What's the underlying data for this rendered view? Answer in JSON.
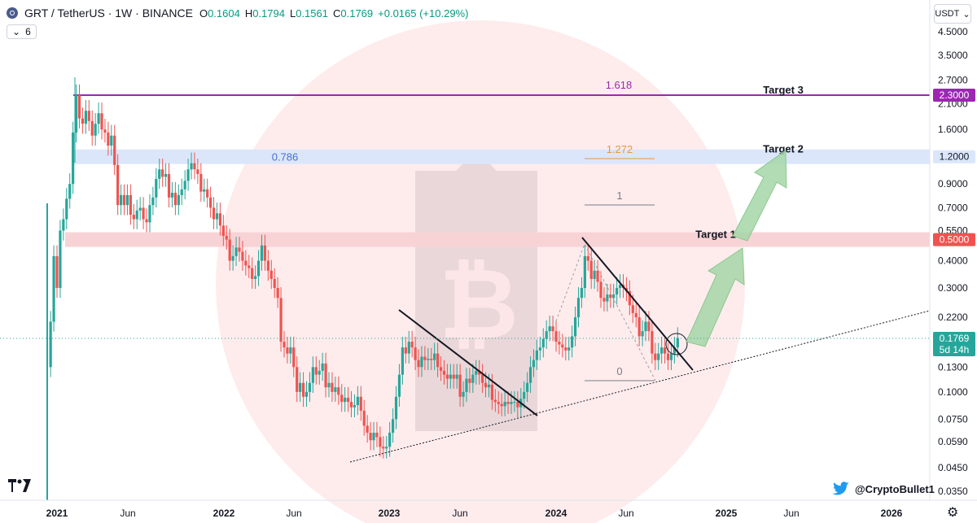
{
  "header": {
    "symbol": "GRT / TetherUS · 1W · BINANCE",
    "o_label": "O",
    "o_value": "0.1604",
    "h_label": "H",
    "h_value": "0.1794",
    "l_label": "L",
    "l_value": "0.1561",
    "c_label": "C",
    "c_value": "0.1769",
    "change": "+0.0165 (+10.29%)"
  },
  "indicator_toggle": {
    "chevron": "⌄",
    "count": "6"
  },
  "currency_selector": {
    "label": "USDT",
    "chevron": "⌄"
  },
  "watermark_handle": "@CryptoBullet1",
  "colors": {
    "up": "#26a69a",
    "down": "#ef5350",
    "fib_purple": "#9c27b0",
    "fib_blue_band": "#dbe6fb",
    "fib_red_band": "#f8d3d6",
    "arrow_green": "#a5d6a7"
  },
  "chart_data": {
    "type": "candlestick",
    "y_scale": "log",
    "y_ticks": [
      "4.5000",
      "3.5000",
      "2.7000",
      "2.1000",
      "1.6000",
      "0.9000",
      "0.7000",
      "0.5500",
      "0.4000",
      "0.3000",
      "0.2200",
      "0.1300",
      "0.1000",
      "0.0750",
      "0.0590",
      "0.0450",
      "0.0350"
    ],
    "x_ticks": [
      "2021",
      "Jun",
      "2022",
      "Jun",
      "2023",
      "Jun",
      "2024",
      "Jun",
      "2025",
      "Jun",
      "2026"
    ],
    "last_price": {
      "value": "0.1769",
      "countdown": "5d 14h"
    },
    "levels": [
      {
        "price": 2.3,
        "label": "2.3000",
        "fib": "1.618",
        "target": "Target 3"
      },
      {
        "price": 1.2,
        "label": "1.2000",
        "fib": "0.786",
        "target": "Target 2"
      },
      {
        "price": 0.5,
        "label": "0.5000",
        "target": "Target 1"
      }
    ],
    "fib_short": [
      {
        "label": "1.272",
        "price": 1.2
      },
      {
        "label": "1",
        "price": 0.75
      },
      {
        "label": "0",
        "price": 0.115
      }
    ],
    "weekly_close_series": [
      {
        "date": "2020-12-21",
        "close": 0.21
      },
      {
        "date": "2020-12-28",
        "close": 0.42
      },
      {
        "date": "2021-01-04",
        "close": 0.3
      },
      {
        "date": "2021-01-11",
        "close": 0.55
      },
      {
        "date": "2021-01-18",
        "close": 0.62
      },
      {
        "date": "2021-01-25",
        "close": 0.77
      },
      {
        "date": "2021-02-01",
        "close": 0.9
      },
      {
        "date": "2021-02-08",
        "close": 1.55
      },
      {
        "date": "2021-02-15",
        "close": 2.3
      },
      {
        "date": "2021-02-22",
        "close": 1.8
      },
      {
        "date": "2021-03-01",
        "close": 1.7
      },
      {
        "date": "2021-03-08",
        "close": 1.95
      },
      {
        "date": "2021-03-15",
        "close": 1.75
      },
      {
        "date": "2021-03-22",
        "close": 1.5
      },
      {
        "date": "2021-03-29",
        "close": 1.7
      },
      {
        "date": "2021-04-05",
        "close": 1.9
      },
      {
        "date": "2021-04-12",
        "close": 1.6
      },
      {
        "date": "2021-04-19",
        "close": 1.55
      },
      {
        "date": "2021-04-26",
        "close": 1.35
      },
      {
        "date": "2021-05-03",
        "close": 1.5
      },
      {
        "date": "2021-05-10",
        "close": 1.1
      },
      {
        "date": "2021-05-17",
        "close": 0.72
      },
      {
        "date": "2021-05-24",
        "close": 0.8
      },
      {
        "date": "2021-05-31",
        "close": 0.72
      },
      {
        "date": "2021-06-07",
        "close": 0.8
      },
      {
        "date": "2021-06-14",
        "close": 0.65
      },
      {
        "date": "2021-06-21",
        "close": 0.62
      },
      {
        "date": "2021-06-28",
        "close": 0.68
      },
      {
        "date": "2021-07-05",
        "close": 0.7
      },
      {
        "date": "2021-07-12",
        "close": 0.62
      },
      {
        "date": "2021-07-19",
        "close": 0.6
      },
      {
        "date": "2021-07-26",
        "close": 0.72
      },
      {
        "date": "2021-08-02",
        "close": 0.78
      },
      {
        "date": "2021-08-09",
        "close": 0.95
      },
      {
        "date": "2021-08-16",
        "close": 1.05
      },
      {
        "date": "2021-08-23",
        "close": 0.97
      },
      {
        "date": "2021-08-30",
        "close": 1.0
      },
      {
        "date": "2021-09-06",
        "close": 0.78
      },
      {
        "date": "2021-09-13",
        "close": 0.82
      },
      {
        "date": "2021-09-20",
        "close": 0.72
      },
      {
        "date": "2021-09-27",
        "close": 0.8
      },
      {
        "date": "2021-10-04",
        "close": 0.85
      },
      {
        "date": "2021-10-11",
        "close": 0.93
      },
      {
        "date": "2021-10-18",
        "close": 1.05
      },
      {
        "date": "2021-10-25",
        "close": 1.12
      },
      {
        "date": "2021-11-01",
        "close": 1.05
      },
      {
        "date": "2021-11-08",
        "close": 1.0
      },
      {
        "date": "2021-11-15",
        "close": 0.83
      },
      {
        "date": "2021-11-22",
        "close": 0.85
      },
      {
        "date": "2021-11-29",
        "close": 0.78
      },
      {
        "date": "2021-12-06",
        "close": 0.7
      },
      {
        "date": "2021-12-13",
        "close": 0.62
      },
      {
        "date": "2021-12-20",
        "close": 0.66
      },
      {
        "date": "2021-12-27",
        "close": 0.58
      },
      {
        "date": "2022-01-03",
        "close": 0.52
      },
      {
        "date": "2022-01-10",
        "close": 0.5
      },
      {
        "date": "2022-01-17",
        "close": 0.4
      },
      {
        "date": "2022-01-24",
        "close": 0.42
      },
      {
        "date": "2022-01-31",
        "close": 0.46
      },
      {
        "date": "2022-02-07",
        "close": 0.44
      },
      {
        "date": "2022-02-14",
        "close": 0.4
      },
      {
        "date": "2022-02-21",
        "close": 0.38
      },
      {
        "date": "2022-02-28",
        "close": 0.37
      },
      {
        "date": "2022-03-07",
        "close": 0.33
      },
      {
        "date": "2022-03-14",
        "close": 0.34
      },
      {
        "date": "2022-03-21",
        "close": 0.4
      },
      {
        "date": "2022-03-28",
        "close": 0.47
      },
      {
        "date": "2022-04-04",
        "close": 0.4
      },
      {
        "date": "2022-04-11",
        "close": 0.36
      },
      {
        "date": "2022-04-18",
        "close": 0.33
      },
      {
        "date": "2022-04-25",
        "close": 0.3
      },
      {
        "date": "2022-05-02",
        "close": 0.27
      },
      {
        "date": "2022-05-09",
        "close": 0.17
      },
      {
        "date": "2022-05-16",
        "close": 0.16
      },
      {
        "date": "2022-05-23",
        "close": 0.15
      },
      {
        "date": "2022-05-30",
        "close": 0.16
      },
      {
        "date": "2022-06-06",
        "close": 0.13
      },
      {
        "date": "2022-06-13",
        "close": 0.1
      },
      {
        "date": "2022-06-20",
        "close": 0.11
      },
      {
        "date": "2022-06-27",
        "close": 0.095
      },
      {
        "date": "2022-07-04",
        "close": 0.1
      },
      {
        "date": "2022-07-11",
        "close": 0.11
      },
      {
        "date": "2022-07-18",
        "close": 0.13
      },
      {
        "date": "2022-07-25",
        "close": 0.12
      },
      {
        "date": "2022-08-01",
        "close": 0.125
      },
      {
        "date": "2022-08-08",
        "close": 0.135
      },
      {
        "date": "2022-08-15",
        "close": 0.105
      },
      {
        "date": "2022-08-22",
        "close": 0.11
      },
      {
        "date": "2022-08-29",
        "close": 0.1
      },
      {
        "date": "2022-09-05",
        "close": 0.105
      },
      {
        "date": "2022-09-12",
        "close": 0.097
      },
      {
        "date": "2022-09-19",
        "close": 0.09
      },
      {
        "date": "2022-09-26",
        "close": 0.094
      },
      {
        "date": "2022-10-03",
        "close": 0.09
      },
      {
        "date": "2022-10-10",
        "close": 0.085
      },
      {
        "date": "2022-10-17",
        "close": 0.087
      },
      {
        "date": "2022-10-24",
        "close": 0.095
      },
      {
        "date": "2022-10-31",
        "close": 0.082
      },
      {
        "date": "2022-11-07",
        "close": 0.07
      },
      {
        "date": "2022-11-14",
        "close": 0.065
      },
      {
        "date": "2022-11-21",
        "close": 0.06
      },
      {
        "date": "2022-11-28",
        "close": 0.065
      },
      {
        "date": "2022-12-05",
        "close": 0.062
      },
      {
        "date": "2022-12-12",
        "close": 0.056
      },
      {
        "date": "2022-12-19",
        "close": 0.055
      },
      {
        "date": "2022-12-26",
        "close": 0.056
      },
      {
        "date": "2023-01-02",
        "close": 0.065
      },
      {
        "date": "2023-01-09",
        "close": 0.075
      },
      {
        "date": "2023-01-16",
        "close": 0.095
      },
      {
        "date": "2023-01-23",
        "close": 0.12
      },
      {
        "date": "2023-01-30",
        "close": 0.16
      },
      {
        "date": "2023-02-06",
        "close": 0.15
      },
      {
        "date": "2023-02-13",
        "close": 0.17
      },
      {
        "date": "2023-02-20",
        "close": 0.16
      },
      {
        "date": "2023-02-27",
        "close": 0.14
      },
      {
        "date": "2023-03-06",
        "close": 0.13
      },
      {
        "date": "2023-03-13",
        "close": 0.145
      },
      {
        "date": "2023-03-20",
        "close": 0.14
      },
      {
        "date": "2023-03-27",
        "close": 0.142
      },
      {
        "date": "2023-04-03",
        "close": 0.14
      },
      {
        "date": "2023-04-10",
        "close": 0.15
      },
      {
        "date": "2023-04-17",
        "close": 0.13
      },
      {
        "date": "2023-04-24",
        "close": 0.125
      },
      {
        "date": "2023-05-01",
        "close": 0.12
      },
      {
        "date": "2023-05-08",
        "close": 0.115
      },
      {
        "date": "2023-05-15",
        "close": 0.12
      },
      {
        "date": "2023-05-22",
        "close": 0.115
      },
      {
        "date": "2023-05-29",
        "close": 0.12
      },
      {
        "date": "2023-06-05",
        "close": 0.095
      },
      {
        "date": "2023-06-12",
        "close": 0.1
      },
      {
        "date": "2023-06-19",
        "close": 0.115
      },
      {
        "date": "2023-06-26",
        "close": 0.11
      },
      {
        "date": "2023-07-03",
        "close": 0.12
      },
      {
        "date": "2023-07-10",
        "close": 0.125
      },
      {
        "date": "2023-07-17",
        "close": 0.12
      },
      {
        "date": "2023-07-24",
        "close": 0.11
      },
      {
        "date": "2023-07-31",
        "close": 0.105
      },
      {
        "date": "2023-08-07",
        "close": 0.108
      },
      {
        "date": "2023-08-14",
        "close": 0.092
      },
      {
        "date": "2023-08-21",
        "close": 0.09
      },
      {
        "date": "2023-08-28",
        "close": 0.088
      },
      {
        "date": "2023-09-04",
        "close": 0.086
      },
      {
        "date": "2023-09-11",
        "close": 0.09
      },
      {
        "date": "2023-09-18",
        "close": 0.088
      },
      {
        "date": "2023-09-25",
        "close": 0.09
      },
      {
        "date": "2023-10-02",
        "close": 0.09
      },
      {
        "date": "2023-10-09",
        "close": 0.085
      },
      {
        "date": "2023-10-16",
        "close": 0.093
      },
      {
        "date": "2023-10-23",
        "close": 0.1
      },
      {
        "date": "2023-10-30",
        "close": 0.11
      },
      {
        "date": "2023-11-06",
        "close": 0.13
      },
      {
        "date": "2023-11-13",
        "close": 0.14
      },
      {
        "date": "2023-11-20",
        "close": 0.155
      },
      {
        "date": "2023-11-27",
        "close": 0.16
      },
      {
        "date": "2023-12-04",
        "close": 0.175
      },
      {
        "date": "2023-12-11",
        "close": 0.19
      },
      {
        "date": "2023-12-18",
        "close": 0.2
      },
      {
        "date": "2023-12-25",
        "close": 0.19
      },
      {
        "date": "2024-01-01",
        "close": 0.17
      },
      {
        "date": "2024-01-08",
        "close": 0.165
      },
      {
        "date": "2024-01-15",
        "close": 0.16
      },
      {
        "date": "2024-01-22",
        "close": 0.155
      },
      {
        "date": "2024-01-29",
        "close": 0.16
      },
      {
        "date": "2024-02-05",
        "close": 0.18
      },
      {
        "date": "2024-02-12",
        "close": 0.22
      },
      {
        "date": "2024-02-19",
        "close": 0.27
      },
      {
        "date": "2024-02-26",
        "close": 0.3
      },
      {
        "date": "2024-03-04",
        "close": 0.42
      },
      {
        "date": "2024-03-11",
        "close": 0.4
      },
      {
        "date": "2024-03-18",
        "close": 0.33
      },
      {
        "date": "2024-03-25",
        "close": 0.36
      },
      {
        "date": "2024-04-01",
        "close": 0.32
      },
      {
        "date": "2024-04-08",
        "close": 0.27
      },
      {
        "date": "2024-04-15",
        "close": 0.26
      },
      {
        "date": "2024-04-22",
        "close": 0.28
      },
      {
        "date": "2024-04-29",
        "close": 0.27
      },
      {
        "date": "2024-05-06",
        "close": 0.28
      },
      {
        "date": "2024-05-13",
        "close": 0.3
      },
      {
        "date": "2024-05-20",
        "close": 0.31
      },
      {
        "date": "2024-05-27",
        "close": 0.3
      },
      {
        "date": "2024-06-03",
        "close": 0.29
      },
      {
        "date": "2024-06-10",
        "close": 0.25
      },
      {
        "date": "2024-06-17",
        "close": 0.23
      },
      {
        "date": "2024-06-24",
        "close": 0.22
      },
      {
        "date": "2024-07-01",
        "close": 0.18
      },
      {
        "date": "2024-07-08",
        "close": 0.19
      },
      {
        "date": "2024-07-15",
        "close": 0.21
      },
      {
        "date": "2024-07-22",
        "close": 0.19
      },
      {
        "date": "2024-07-29",
        "close": 0.15
      },
      {
        "date": "2024-08-05",
        "close": 0.14
      },
      {
        "date": "2024-08-12",
        "close": 0.15
      },
      {
        "date": "2024-08-19",
        "close": 0.16
      },
      {
        "date": "2024-08-26",
        "close": 0.15
      },
      {
        "date": "2024-09-02",
        "close": 0.14
      },
      {
        "date": "2024-09-09",
        "close": 0.15
      },
      {
        "date": "2024-09-16",
        "close": 0.16
      },
      {
        "date": "2024-09-23",
        "close": 0.1769
      }
    ]
  }
}
